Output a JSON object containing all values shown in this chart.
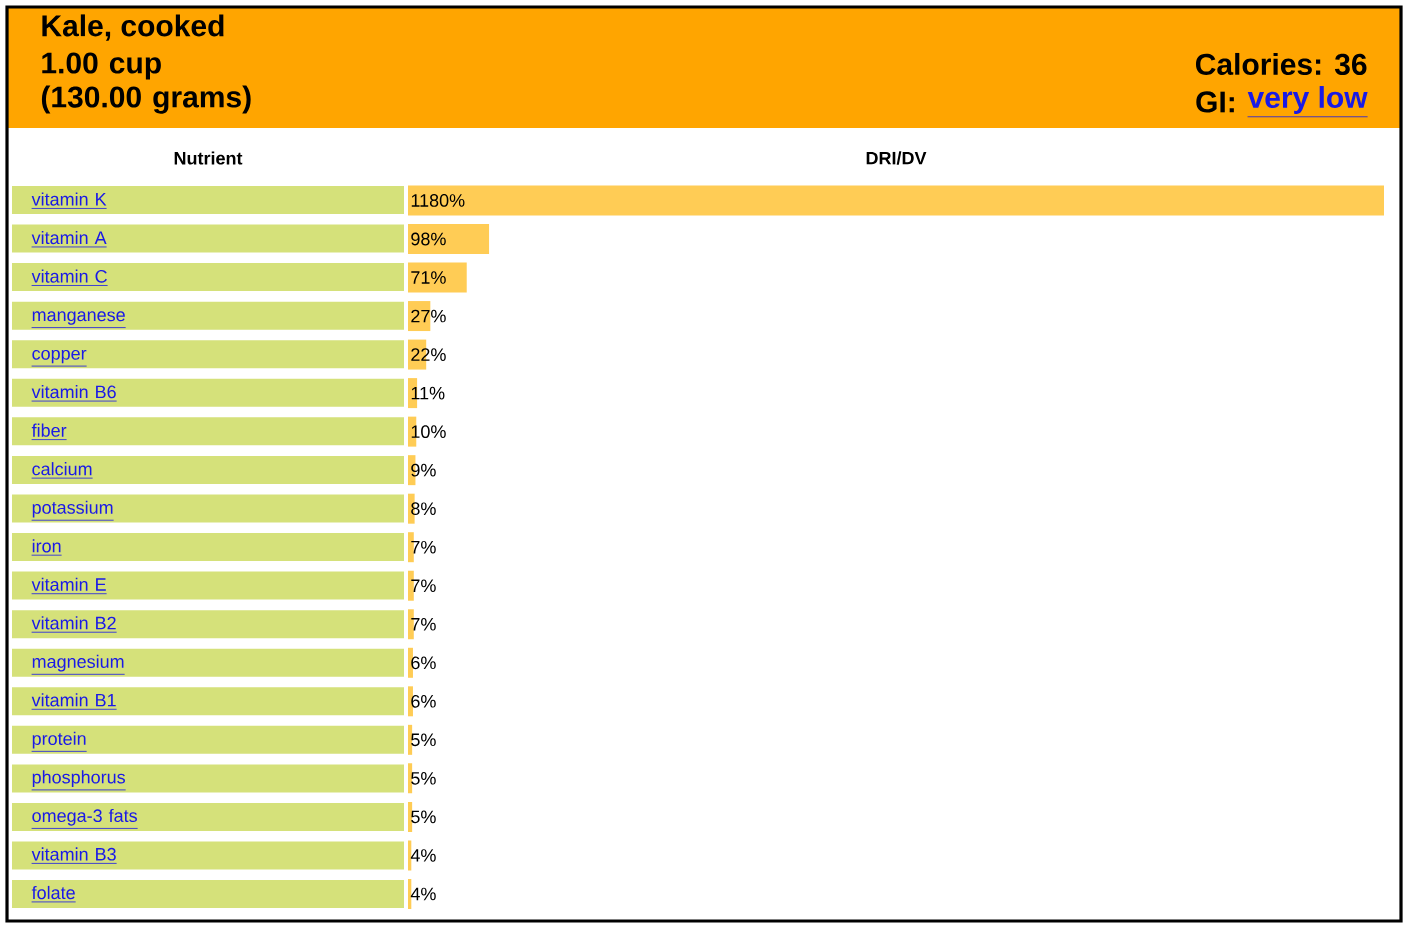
{
  "chart_data": {
    "type": "bar",
    "orientation": "horizontal",
    "title": "Kale, cooked",
    "subtitle": "1.00 cup (130.00 grams)",
    "ylabel": "Nutrient",
    "xlabel": "DRI/DV",
    "annotations": [
      "Calories: 36",
      "GI:",
      "very low"
    ],
    "categories": [
      "vitamin K",
      "vitamin A",
      "vitamin C",
      "manganese",
      "copper",
      "vitamin B6",
      "fiber",
      "calcium",
      "potassium",
      "iron",
      "vitamin E",
      "vitamin B2",
      "magnesium",
      "vitamin B1",
      "protein",
      "phosphorus",
      "omega-3 fats",
      "vitamin B3",
      "folate"
    ],
    "values": [
      1180,
      98,
      71,
      27,
      22,
      11,
      10,
      9,
      8,
      7,
      7,
      7,
      6,
      6,
      5,
      5,
      5,
      4,
      4
    ],
    "value_labels": [
      "1180%",
      "98%",
      "71%",
      "27%",
      "22%",
      "11%",
      "10%",
      "9%",
      "8%",
      "7%",
      "7%",
      "7%",
      "6%",
      "6%",
      "5%",
      "5%",
      "5%",
      "4%",
      "4%"
    ],
    "color": "#ffcc55"
  }
}
